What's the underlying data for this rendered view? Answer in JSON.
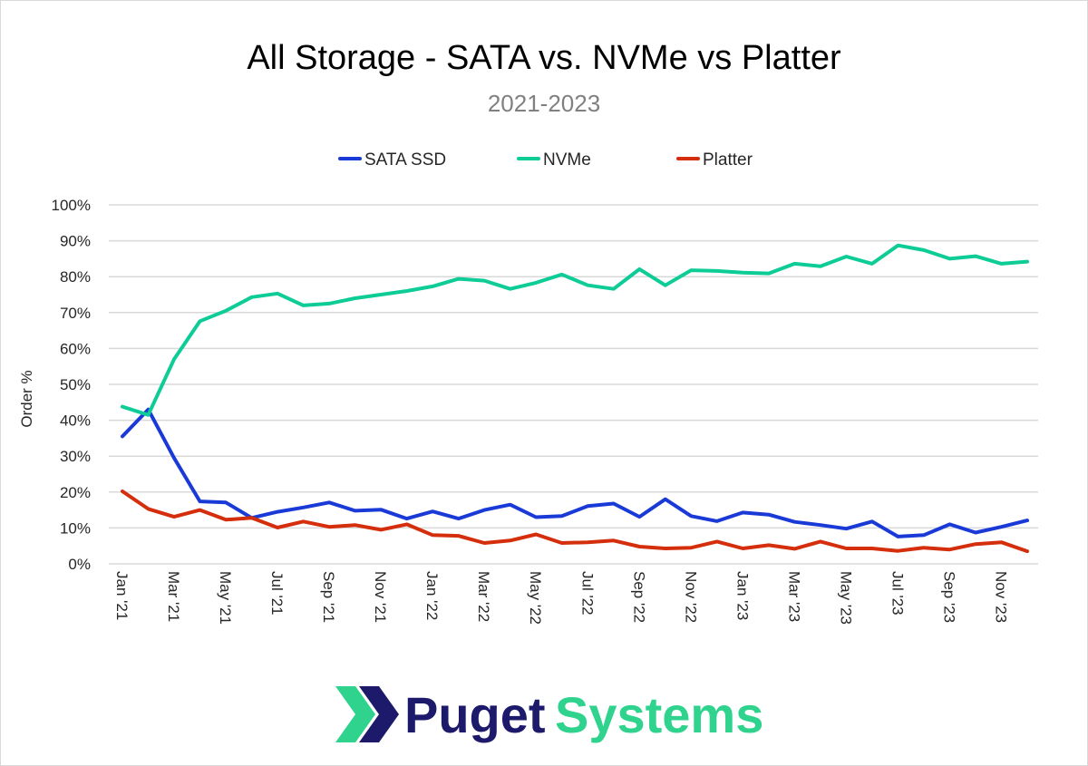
{
  "chart_data": {
    "type": "line",
    "title": "All Storage - SATA vs. NVMe vs Platter",
    "subtitle": "2021-2023",
    "xlabel": "",
    "ylabel": "Order %",
    "ylim": [
      0,
      100
    ],
    "y_ticks": [
      "0%",
      "10%",
      "20%",
      "30%",
      "40%",
      "50%",
      "60%",
      "70%",
      "80%",
      "90%",
      "100%"
    ],
    "x_tick_labels": [
      "Jan '21",
      "Mar '21",
      "May '21",
      "Jul '21",
      "Sep '21",
      "Nov '21",
      "Jan '22",
      "Mar '22",
      "May '22",
      "Jul '22",
      "Sep '22",
      "Nov '22",
      "Jan '23",
      "Mar '23",
      "May '23",
      "Jul '23",
      "Sep '23",
      "Nov '23"
    ],
    "x": [
      "Jan '21",
      "Feb '21",
      "Mar '21",
      "Apr '21",
      "May '21",
      "Jun '21",
      "Jul '21",
      "Aug '21",
      "Sep '21",
      "Oct '21",
      "Nov '21",
      "Dec '21",
      "Jan '22",
      "Feb '22",
      "Mar '22",
      "Apr '22",
      "May '22",
      "Jun '22",
      "Jul '22",
      "Aug '22",
      "Sep '22",
      "Oct '22",
      "Nov '22",
      "Dec '22",
      "Jan '23",
      "Feb '23",
      "Mar '23",
      "Apr '23",
      "May '23",
      "Jun '23",
      "Jul '23",
      "Aug '23",
      "Sep '23",
      "Oct '23",
      "Nov '23",
      "Dec '23"
    ],
    "grid": true,
    "legend_position": "top",
    "series": [
      {
        "name": "SATA SSD",
        "color": "#1a3ad8",
        "values": [
          35.5,
          43,
          29.5,
          17.4,
          17.1,
          12.8,
          14.5,
          15.7,
          17.1,
          14.8,
          15.1,
          12.6,
          14.6,
          12.6,
          15,
          16.5,
          13,
          13.3,
          16.1,
          16.8,
          13.1,
          18,
          13.3,
          11.9,
          14.3,
          13.7,
          11.7,
          10.8,
          9.8,
          11.8,
          7.6,
          8,
          11,
          8.7,
          10.3,
          12.1
        ]
      },
      {
        "name": "NVMe",
        "color": "#0ecc96",
        "values": [
          43.8,
          41.5,
          57,
          67.6,
          70.5,
          74.3,
          75.3,
          72,
          72.5,
          74,
          75,
          76,
          77.3,
          79.4,
          78.9,
          76.6,
          78.3,
          80.6,
          77.6,
          76.6,
          82.1,
          77.6,
          81.8,
          81.6,
          81.1,
          80.9,
          83.6,
          82.9,
          85.6,
          83.6,
          88.7,
          87.4,
          85,
          85.7,
          83.6,
          84.2
        ]
      },
      {
        "name": "Platter",
        "color": "#d42e0c",
        "values": [
          20.2,
          15.3,
          13.1,
          15,
          12.3,
          12.8,
          10.1,
          11.8,
          10.3,
          10.8,
          9.5,
          11,
          8,
          7.8,
          5.8,
          6.5,
          8.2,
          5.8,
          6,
          6.5,
          4.8,
          4.3,
          4.5,
          6.2,
          4.3,
          5.2,
          4.2,
          6.2,
          4.3,
          4.3,
          3.6,
          4.5,
          4,
          5.5,
          6,
          3.5
        ]
      }
    ]
  },
  "logo": {
    "word1": "Puget",
    "word2": "Systems"
  }
}
